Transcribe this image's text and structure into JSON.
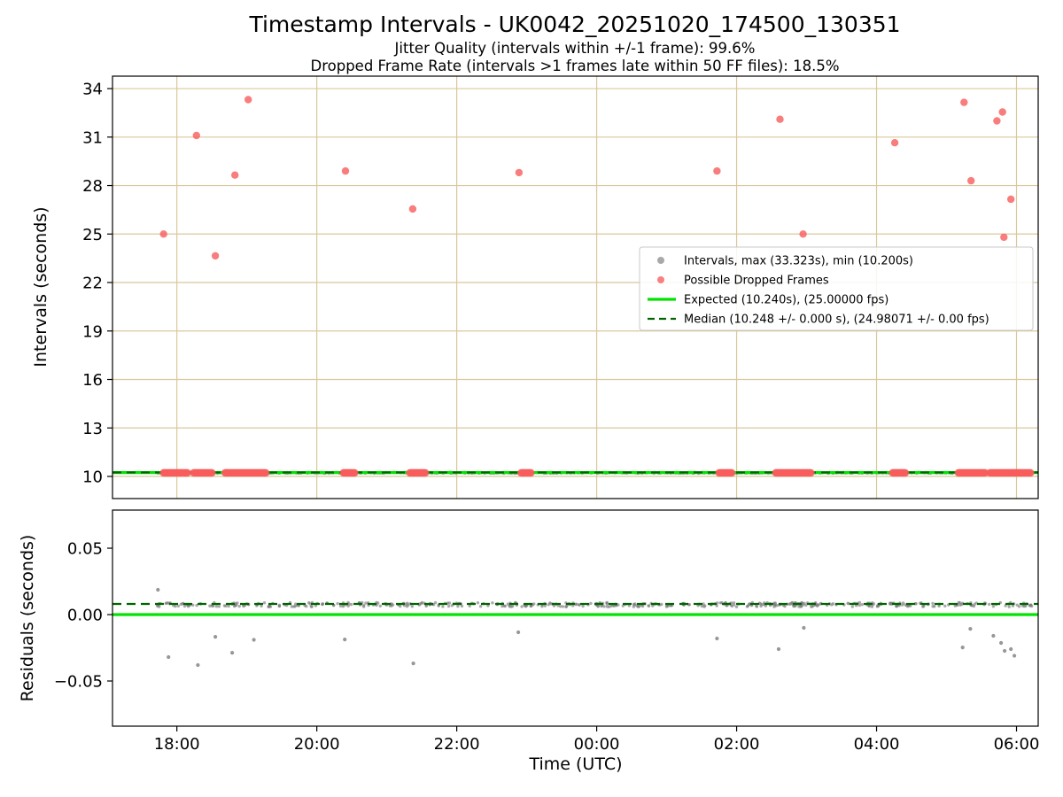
{
  "chart_data": {
    "type": "scatter",
    "title": "Timestamp Intervals - UK0042_20251020_174500_130351",
    "subtitle1": "Jitter Quality (intervals within +/-1 frame): 99.6%",
    "subtitle2": "Dropped Frame Rate (intervals >1 frames late within 50 FF files): 18.5%",
    "xlabel": "Time (UTC)",
    "xlim": [
      17.08,
      30.31
    ],
    "x_ticks": [
      {
        "h": 18,
        "label": "18:00"
      },
      {
        "h": 20,
        "label": "20:00"
      },
      {
        "h": 22,
        "label": "22:00"
      },
      {
        "h": 24,
        "label": "00:00"
      },
      {
        "h": 26,
        "label": "02:00"
      },
      {
        "h": 28,
        "label": "04:00"
      },
      {
        "h": 30,
        "label": "06:00"
      }
    ],
    "top": {
      "ylabel": "Intervals (seconds)",
      "ylim": [
        8.63,
        34.77
      ],
      "yticks": [
        10,
        13,
        16,
        19,
        22,
        25,
        28,
        31,
        34
      ],
      "expected_s": 10.24,
      "median_s": 10.248,
      "baseline_value": 10.225,
      "baseline_x_range": [
        17.72,
        30.25
      ],
      "dropped_high_points": [
        [
          17.81,
          25.0
        ],
        [
          18.28,
          31.1
        ],
        [
          18.55,
          23.65
        ],
        [
          18.83,
          28.65
        ],
        [
          19.02,
          33.32
        ],
        [
          20.41,
          28.9
        ],
        [
          21.37,
          26.55
        ],
        [
          22.89,
          28.8
        ],
        [
          25.72,
          28.9
        ],
        [
          26.62,
          32.1
        ],
        [
          26.95,
          25.0
        ],
        [
          28.26,
          30.65
        ],
        [
          29.25,
          33.15
        ],
        [
          29.35,
          28.3
        ],
        [
          29.72,
          32.0
        ],
        [
          29.8,
          32.55
        ],
        [
          29.82,
          24.8
        ],
        [
          29.92,
          27.15
        ]
      ],
      "dropped_baseline_clusters": [
        [
          17.81,
          18.16
        ],
        [
          18.24,
          18.51
        ],
        [
          18.69,
          19.27
        ],
        [
          20.38,
          20.54
        ],
        [
          21.33,
          21.55
        ],
        [
          22.92,
          23.07
        ],
        [
          25.75,
          25.93
        ],
        [
          26.56,
          27.07
        ],
        [
          28.23,
          28.41
        ],
        [
          29.17,
          29.55
        ],
        [
          29.62,
          30.2
        ]
      ]
    },
    "bottom": {
      "ylabel": "Residuals (seconds)",
      "ylim": [
        -0.084,
        0.0787
      ],
      "yticks": [
        -0.05,
        0.0,
        0.05
      ],
      "ytick_labels": [
        "−0.05",
        "0.00",
        "0.05"
      ],
      "expected_s": 0.0,
      "median_s": 0.008,
      "baseline_value": 0.0075,
      "baseline_x_range": [
        17.72,
        30.22
      ],
      "outlier_points": [
        [
          17.73,
          0.0187
        ],
        [
          17.88,
          -0.032
        ],
        [
          18.3,
          -0.038
        ],
        [
          18.55,
          -0.0167
        ],
        [
          18.79,
          -0.0287
        ],
        [
          19.1,
          -0.019
        ],
        [
          20.4,
          -0.0187
        ],
        [
          21.38,
          -0.0367
        ],
        [
          22.88,
          -0.0133
        ],
        [
          25.72,
          -0.018
        ],
        [
          26.6,
          -0.026
        ],
        [
          26.96,
          -0.01
        ],
        [
          29.23,
          -0.0247
        ],
        [
          29.34,
          -0.0107
        ],
        [
          29.67,
          -0.016
        ],
        [
          29.78,
          -0.0213
        ],
        [
          29.83,
          -0.0273
        ],
        [
          29.92,
          -0.026
        ],
        [
          29.97,
          -0.031
        ]
      ]
    },
    "legend": [
      {
        "marker": "dot",
        "color": "#999999",
        "label": "Intervals, max (33.323s), min (10.200s)"
      },
      {
        "marker": "dot",
        "color": "#f86a6a",
        "label": "Possible Dropped Frames"
      },
      {
        "marker": "line",
        "color": "#00e400",
        "label": "Expected (10.240s), (25.00000 fps)"
      },
      {
        "marker": "dashed",
        "color": "#006400",
        "label": "Median (10.248 +/- 0.000 s), (24.98071 +/- 0.00 fps)"
      }
    ],
    "colors": {
      "grid": "#d9c89b",
      "red": "#f85c5c",
      "gray": "#8c8c8c",
      "expected": "#00e400",
      "median": "#006400",
      "spine": "#000000",
      "legend_border": "#c8c8c8"
    }
  }
}
